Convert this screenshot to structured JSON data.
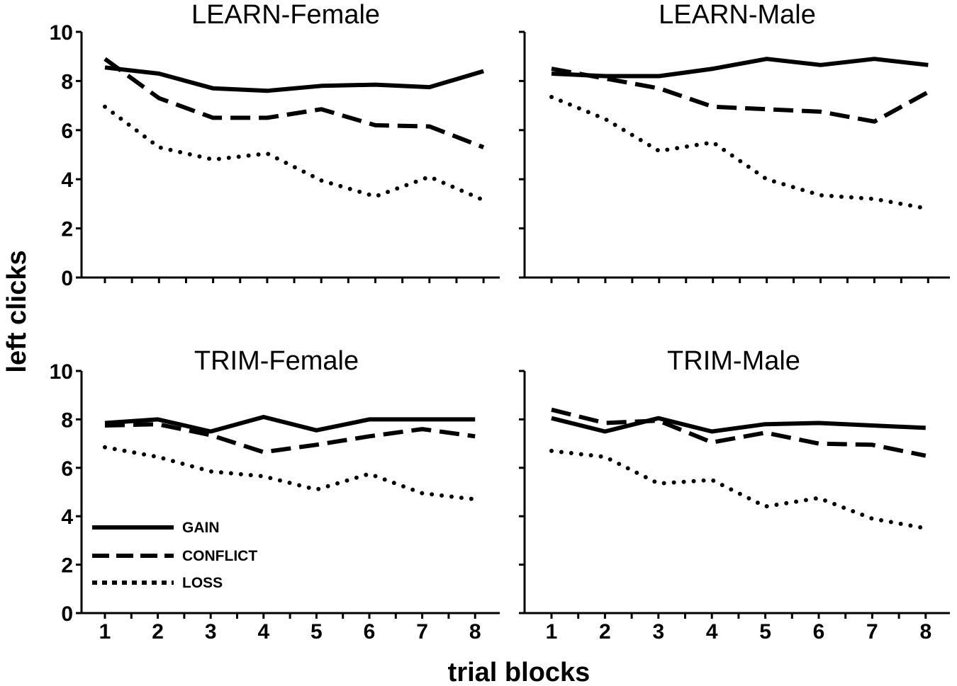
{
  "chart_data": {
    "type": "line",
    "xlabel": "trial blocks",
    "ylabel": "left clicks",
    "x": [
      1,
      2,
      3,
      4,
      5,
      6,
      7,
      8
    ],
    "x_tick_labels": [
      "1",
      "2",
      "3",
      "4",
      "5",
      "6",
      "7",
      "8"
    ],
    "ylim": [
      0,
      10
    ],
    "y_ticks": [
      0,
      2,
      4,
      6,
      8,
      10
    ],
    "y_tick_labels": [
      "0",
      "2",
      "4",
      "6",
      "8",
      "10"
    ],
    "legend": {
      "placement": "inside bottom-left of TRIM-Female panel",
      "entries": [
        {
          "label": "GAIN",
          "style": "solid"
        },
        {
          "label": "CONFLICT",
          "style": "dashed"
        },
        {
          "label": "LOSS",
          "style": "dotted"
        }
      ]
    },
    "panels": [
      {
        "title": "LEARN-Female",
        "series": [
          {
            "name": "GAIN",
            "values": [
              8.55,
              8.3,
              7.7,
              7.6,
              7.8,
              7.85,
              7.75,
              8.4
            ]
          },
          {
            "name": "CONFLICT",
            "values": [
              8.9,
              7.3,
              6.5,
              6.5,
              6.85,
              6.2,
              6.15,
              5.3
            ]
          },
          {
            "name": "LOSS",
            "values": [
              6.95,
              5.3,
              4.8,
              5.05,
              3.95,
              3.3,
              4.1,
              3.15
            ]
          }
        ]
      },
      {
        "title": "LEARN-Male",
        "series": [
          {
            "name": "GAIN",
            "values": [
              8.3,
              8.2,
              8.2,
              8.5,
              8.9,
              8.65,
              8.9,
              8.65
            ]
          },
          {
            "name": "CONFLICT",
            "values": [
              8.5,
              8.1,
              7.7,
              6.95,
              6.85,
              6.75,
              6.35,
              7.55
            ]
          },
          {
            "name": "LOSS",
            "values": [
              7.35,
              6.45,
              5.15,
              5.5,
              4.0,
              3.35,
              3.2,
              2.8
            ]
          }
        ]
      },
      {
        "title": "TRIM-Female",
        "series": [
          {
            "name": "GAIN",
            "values": [
              7.85,
              8.0,
              7.5,
              8.1,
              7.55,
              8.0,
              8.0,
              8.0
            ]
          },
          {
            "name": "CONFLICT",
            "values": [
              7.75,
              7.8,
              7.35,
              6.65,
              6.95,
              7.3,
              7.6,
              7.3
            ]
          },
          {
            "name": "LOSS",
            "values": [
              6.85,
              6.45,
              5.85,
              5.65,
              5.1,
              5.75,
              4.95,
              4.7
            ]
          }
        ]
      },
      {
        "title": "TRIM-Male",
        "series": [
          {
            "name": "GAIN",
            "values": [
              8.05,
              7.5,
              8.05,
              7.5,
              7.8,
              7.85,
              7.75,
              7.65
            ]
          },
          {
            "name": "CONFLICT",
            "values": [
              8.4,
              7.85,
              7.95,
              7.05,
              7.45,
              7.0,
              6.95,
              6.5
            ]
          },
          {
            "name": "LOSS",
            "values": [
              6.7,
              6.45,
              5.35,
              5.5,
              4.4,
              4.75,
              3.9,
              3.5
            ]
          }
        ]
      }
    ]
  }
}
